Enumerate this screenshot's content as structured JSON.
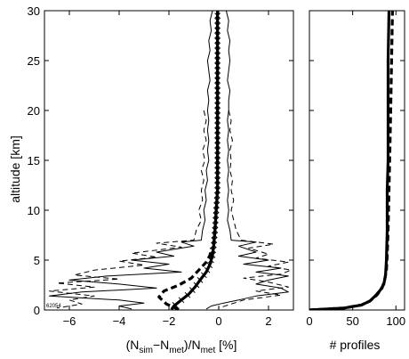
{
  "chart_data": [
    {
      "type": "line",
      "xlabel_parts": [
        "(N",
        "sim",
        "−N",
        "met",
        ")/N",
        "met",
        " [%]"
      ],
      "ylabel": "altitude [km]",
      "xlim": [
        -7,
        3
      ],
      "ylim": [
        0,
        30
      ],
      "xticks": [
        -6,
        -4,
        -2,
        0,
        2
      ],
      "xtick_labels": [
        "−6",
        "−4",
        "−2",
        "0",
        "2"
      ],
      "yticks": [
        0,
        5,
        10,
        15,
        20,
        25,
        30
      ],
      "ytick_labels": [
        "0",
        "5",
        "10",
        "15",
        "20",
        "25",
        "30"
      ],
      "annotation": "62054",
      "grid": false,
      "series": [
        {
          "style": "solid-thick-with-markers",
          "points": [
            [
              -1.9,
              0.05
            ],
            [
              -1.8,
              0.4
            ],
            [
              -1.5,
              1
            ],
            [
              -1.2,
              1.6
            ],
            [
              -0.95,
              2.3
            ],
            [
              -0.75,
              3.0
            ],
            [
              -0.5,
              3.8
            ],
            [
              -0.35,
              4.6
            ],
            [
              -0.25,
              5.5
            ],
            [
              -0.2,
              6.5
            ],
            [
              -0.15,
              8
            ],
            [
              -0.1,
              10
            ],
            [
              -0.05,
              12
            ],
            [
              -0.05,
              15
            ],
            [
              -0.05,
              18
            ],
            [
              -0.05,
              20
            ],
            [
              -0.05,
              22
            ],
            [
              -0.05,
              25
            ],
            [
              -0.05,
              28
            ],
            [
              -0.05,
              30
            ]
          ]
        },
        {
          "style": "dashed-thick",
          "points": [
            [
              -1.6,
              0.05
            ],
            [
              -2.1,
              0.6
            ],
            [
              -2.4,
              1.3
            ],
            [
              -2.2,
              1.9
            ],
            [
              -1.6,
              2.5
            ],
            [
              -1.1,
              3.2
            ],
            [
              -0.8,
              4.0
            ],
            [
              -0.5,
              4.8
            ],
            [
              -0.35,
              5.5
            ],
            [
              -0.3,
              6.2
            ]
          ]
        },
        {
          "style": "solid-thin",
          "points": [
            [
              -0.25,
              30
            ],
            [
              -0.35,
              29
            ],
            [
              -0.3,
              28
            ],
            [
              -0.4,
              27
            ],
            [
              -0.35,
              26
            ],
            [
              -0.45,
              25
            ],
            [
              -0.4,
              24
            ],
            [
              -0.35,
              23
            ],
            [
              -0.45,
              22
            ],
            [
              -0.4,
              21
            ],
            [
              -0.45,
              20
            ],
            [
              -0.4,
              19
            ],
            [
              -0.45,
              18
            ],
            [
              -0.4,
              17
            ],
            [
              -0.45,
              16
            ],
            [
              -0.4,
              15
            ],
            [
              -0.5,
              14
            ],
            [
              -0.45,
              13
            ],
            [
              -0.55,
              12
            ],
            [
              -0.5,
              11
            ],
            [
              -0.6,
              10
            ],
            [
              -0.55,
              9
            ],
            [
              -0.65,
              8
            ],
            [
              -0.7,
              7
            ],
            [
              -1.5,
              6.8
            ],
            [
              -1.0,
              6.4
            ],
            [
              -2.5,
              5.8
            ],
            [
              -1.8,
              5.4
            ],
            [
              -3.5,
              5.0
            ],
            [
              -2.0,
              4.6
            ],
            [
              -3.0,
              4.2
            ],
            [
              -1.5,
              3.8
            ],
            [
              -4.5,
              3.4
            ],
            [
              -6.0,
              3.0
            ],
            [
              -4.0,
              2.6
            ],
            [
              -2.5,
              2.2
            ],
            [
              -5.5,
              1.8
            ],
            [
              -6.8,
              1.4
            ],
            [
              -4.0,
              1.0
            ],
            [
              -3.0,
              0.7
            ],
            [
              -4.0,
              0.4
            ],
            [
              -3.5,
              0.1
            ]
          ]
        },
        {
          "style": "solid-thin",
          "points": [
            [
              0.3,
              30
            ],
            [
              0.4,
              29
            ],
            [
              0.35,
              28
            ],
            [
              0.45,
              27
            ],
            [
              0.4,
              26
            ],
            [
              0.45,
              25
            ],
            [
              0.4,
              24
            ],
            [
              0.35,
              23
            ],
            [
              0.45,
              22
            ],
            [
              0.4,
              21
            ],
            [
              0.4,
              20
            ],
            [
              0.35,
              19
            ],
            [
              0.4,
              18
            ],
            [
              0.35,
              17
            ],
            [
              0.4,
              16
            ],
            [
              0.35,
              15
            ],
            [
              0.4,
              14
            ],
            [
              0.35,
              13
            ],
            [
              0.4,
              12
            ],
            [
              0.35,
              11
            ],
            [
              0.4,
              10
            ],
            [
              0.35,
              9
            ],
            [
              0.45,
              8
            ],
            [
              0.5,
              7
            ],
            [
              1.5,
              6.8
            ],
            [
              0.8,
              6.4
            ],
            [
              1.5,
              5.8
            ],
            [
              0.8,
              5.4
            ],
            [
              2.0,
              5.0
            ],
            [
              1.0,
              4.6
            ],
            [
              2.5,
              4.2
            ],
            [
              1.5,
              3.8
            ],
            [
              2.8,
              3.4
            ],
            [
              2.0,
              3.0
            ],
            [
              1.5,
              2.6
            ],
            [
              2.5,
              2.2
            ],
            [
              2.8,
              1.8
            ],
            [
              1.5,
              1.4
            ],
            [
              0.8,
              1.0
            ],
            [
              0.2,
              0.7
            ],
            [
              -0.3,
              0.4
            ],
            [
              -0.5,
              0.1
            ]
          ]
        },
        {
          "style": "dashed-thin",
          "points": [
            [
              -0.6,
              20
            ],
            [
              -0.5,
              19
            ],
            [
              -0.6,
              18
            ],
            [
              -0.5,
              17
            ],
            [
              -0.65,
              16
            ],
            [
              -0.55,
              15
            ],
            [
              -0.7,
              14
            ],
            [
              -0.6,
              13
            ],
            [
              -0.7,
              12
            ],
            [
              -0.65,
              11
            ],
            [
              -0.8,
              10
            ],
            [
              -0.7,
              9
            ],
            [
              -0.9,
              8
            ],
            [
              -1.0,
              7
            ],
            [
              -2.5,
              6.7
            ],
            [
              -1.5,
              6.3
            ],
            [
              -3.5,
              5.7
            ],
            [
              -2.5,
              5.3
            ],
            [
              -4.0,
              4.9
            ],
            [
              -3.0,
              4.5
            ],
            [
              -5.0,
              4.0
            ],
            [
              -5.8,
              3.5
            ],
            [
              -4.0,
              3.1
            ],
            [
              -6.5,
              2.7
            ],
            [
              -5.0,
              2.3
            ],
            [
              -6.8,
              1.9
            ],
            [
              -5.0,
              1.4
            ],
            [
              -6.0,
              1.0
            ],
            [
              -5.5,
              0.6
            ],
            [
              -6.5,
              0.2
            ]
          ]
        },
        {
          "style": "dashed-thin",
          "points": [
            [
              0.4,
              20
            ],
            [
              0.5,
              19
            ],
            [
              0.45,
              18
            ],
            [
              0.55,
              17
            ],
            [
              0.45,
              16
            ],
            [
              0.5,
              15
            ],
            [
              0.45,
              14
            ],
            [
              0.55,
              13
            ],
            [
              0.5,
              12
            ],
            [
              0.6,
              11
            ],
            [
              0.5,
              10
            ],
            [
              0.6,
              9
            ],
            [
              0.7,
              8
            ],
            [
              0.9,
              7
            ],
            [
              2.2,
              6.6
            ],
            [
              1.2,
              6.2
            ],
            [
              2.0,
              5.6
            ],
            [
              1.5,
              5.2
            ],
            [
              2.8,
              4.8
            ],
            [
              2.0,
              4.4
            ],
            [
              2.9,
              4.0
            ],
            [
              2.5,
              3.6
            ],
            [
              1.0,
              3.2
            ],
            [
              2.0,
              2.8
            ],
            [
              2.8,
              2.3
            ],
            [
              1.5,
              1.9
            ],
            [
              2.5,
              1.5
            ],
            [
              1.0,
              1.0
            ],
            [
              0.5,
              0.6
            ],
            [
              0.0,
              0.2
            ]
          ]
        }
      ]
    },
    {
      "type": "line",
      "xlabel": "# profiles",
      "xlim": [
        0,
        110
      ],
      "ylim": [
        0,
        30
      ],
      "xticks": [
        0,
        50,
        100
      ],
      "xtick_labels": [
        "0",
        "50",
        "100"
      ],
      "grid": false,
      "series": [
        {
          "style": "solid-thick",
          "points": [
            [
              0,
              0
            ],
            [
              40,
              0.2
            ],
            [
              60,
              0.5
            ],
            [
              70,
              0.9
            ],
            [
              76,
              1.4
            ],
            [
              82,
              2.0
            ],
            [
              86,
              2.6
            ],
            [
              88,
              3.5
            ],
            [
              89,
              5
            ],
            [
              90,
              8
            ],
            [
              90,
              12
            ],
            [
              91,
              15
            ],
            [
              91,
              20
            ],
            [
              91,
              25
            ],
            [
              92,
              30
            ]
          ]
        },
        {
          "style": "dashed-thick",
          "points": [
            [
              0,
              0
            ],
            [
              40,
              0.2
            ],
            [
              60,
              0.5
            ],
            [
              70,
              0.9
            ],
            [
              78,
              1.5
            ],
            [
              84,
              2.2
            ],
            [
              87,
              3.0
            ],
            [
              89,
              4.0
            ],
            [
              90,
              5.5
            ],
            [
              91,
              8
            ],
            [
              92,
              12
            ],
            [
              93,
              16
            ],
            [
              94,
              20
            ],
            [
              95,
              25
            ],
            [
              96,
              30
            ]
          ]
        }
      ]
    }
  ]
}
